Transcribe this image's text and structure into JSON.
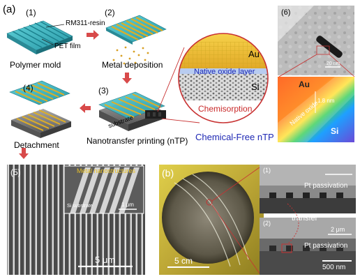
{
  "panel_a": {
    "letter": "(a)",
    "steps": {
      "s1": {
        "num": "(1)",
        "caption": "Polymer mold",
        "label_resin": "RM311-resin",
        "label_film": "PET film"
      },
      "s2": {
        "num": "(2)",
        "caption": "Metal deposition"
      },
      "s3": {
        "num": "(3)",
        "caption": "Nanotransfer printing (nTP)",
        "label_substrate": "substrate"
      },
      "s4": {
        "num": "(4)",
        "caption": "Detachment"
      }
    },
    "zoom_circle": {
      "au": "Au",
      "oxide": "Native oxide layer",
      "si": "Si",
      "chem": "Chemisorption"
    },
    "method_label": "Chemical-Free nTP",
    "tem": {
      "num": "(6)",
      "scale": "20 nm",
      "au": "Au",
      "si": "Si",
      "oxide": "Native oxide",
      "thickness": "1.8 nm"
    },
    "sem5": {
      "num": "(5)",
      "inset_label": "Metal nanostructures",
      "inset_sub": "Si substrate",
      "inset_scale": "1 μm",
      "scale": "5 μm"
    }
  },
  "panel_b": {
    "letter": "(b)",
    "photo_scale": "5 cm",
    "sem1": {
      "num": "(1)",
      "label": "Pt passivation"
    },
    "transfer": "transfer",
    "sem2": {
      "num": "(2)",
      "label": "Pt passivation",
      "scale_top": "2 μm",
      "scale_bottom": "500 nm"
    }
  },
  "colors": {
    "arrow": "#d84a4a",
    "link": "#c83232",
    "blue_text": "#1e28b4",
    "red_text": "#c82828",
    "gold": "#e8c12a",
    "teal": "#3cb4c0"
  }
}
